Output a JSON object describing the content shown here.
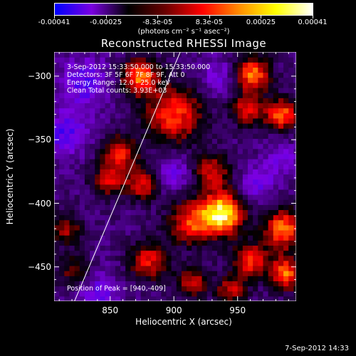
{
  "colorbar": {
    "tick_labels": [
      "-0.00041",
      "-0.00025",
      "-8.3e-05",
      "8.3e-05",
      "0.00025",
      "0.00041"
    ],
    "units": "(photons cm⁻² s⁻¹ asec⁻²)",
    "stops": [
      "#0000ff",
      "#7a00e0",
      "#000000",
      "#6a0000",
      "#ff0000",
      "#ff8c00",
      "#ffff00",
      "#ffffff"
    ]
  },
  "annotations": {
    "time": "3-Sep-2012 15:33:50.000 to 15:33:50.000",
    "detectors": "Detectors: 3F 5F 6F 7F 8F 9F, Att 0",
    "energy": "Energy Range: 12.0 - 25.0 keV",
    "clean": "Clean    Total counts: 3.93E+03",
    "peak": "Position of Peak = [940,-409]"
  },
  "footer": {
    "date": "7-Sep-2012 14:33"
  },
  "chart_data": {
    "type": "heatmap",
    "title": "Reconstructed RHESSI Image",
    "xlabel": "Heliocentric X (arcsec)",
    "ylabel": "Heliocentric Y (arcsec)",
    "xlim": [
      806,
      996
    ],
    "ylim": [
      -477,
      -281
    ],
    "xticks": [
      850,
      900,
      950
    ],
    "yticks": [
      -300,
      -350,
      -400,
      -450
    ],
    "clim": [
      -0.00041,
      0.00041
    ],
    "peak": [
      940,
      -409
    ],
    "limb_line": [
      [
        822,
        -477
      ],
      [
        905,
        -281
      ]
    ],
    "blobs": [
      {
        "x": 938,
        "y": -408,
        "v": 1.0,
        "s": 12
      },
      {
        "x": 900,
        "y": -330,
        "v": 0.65,
        "s": 16
      },
      {
        "x": 873,
        "y": -300,
        "v": 0.75,
        "s": 10
      },
      {
        "x": 962,
        "y": -298,
        "v": 0.72,
        "s": 10
      },
      {
        "x": 958,
        "y": -326,
        "v": 0.55,
        "s": 9
      },
      {
        "x": 985,
        "y": -330,
        "v": 0.7,
        "s": 9
      },
      {
        "x": 986,
        "y": -420,
        "v": 0.75,
        "s": 11
      },
      {
        "x": 988,
        "y": -455,
        "v": 0.72,
        "s": 9
      },
      {
        "x": 912,
        "y": -415,
        "v": 0.6,
        "s": 12
      },
      {
        "x": 880,
        "y": -445,
        "v": 0.55,
        "s": 11
      },
      {
        "x": 858,
        "y": -360,
        "v": 0.55,
        "s": 10
      },
      {
        "x": 848,
        "y": -382,
        "v": 0.5,
        "s": 9
      },
      {
        "x": 930,
        "y": -375,
        "v": 0.52,
        "s": 10
      },
      {
        "x": 815,
        "y": -420,
        "v": 0.45,
        "s": 9
      },
      {
        "x": 822,
        "y": -453,
        "v": 0.38,
        "s": 9
      },
      {
        "x": 960,
        "y": -445,
        "v": 0.6,
        "s": 10
      },
      {
        "x": 915,
        "y": -462,
        "v": 0.5,
        "s": 9
      },
      {
        "x": 945,
        "y": -468,
        "v": 0.5,
        "s": 8
      },
      {
        "x": 875,
        "y": -385,
        "v": 0.55,
        "s": 9
      },
      {
        "x": 830,
        "y": -305,
        "v": -0.4,
        "s": 14
      },
      {
        "x": 840,
        "y": -470,
        "v": -0.35,
        "s": 12
      },
      {
        "x": 815,
        "y": -345,
        "v": -0.45,
        "s": 12
      },
      {
        "x": 935,
        "y": -300,
        "v": -0.3,
        "s": 10
      },
      {
        "x": 965,
        "y": -385,
        "v": -0.35,
        "s": 10
      },
      {
        "x": 900,
        "y": -375,
        "v": -0.3,
        "s": 10
      },
      {
        "x": 985,
        "y": -365,
        "v": -0.3,
        "s": 9
      }
    ]
  }
}
